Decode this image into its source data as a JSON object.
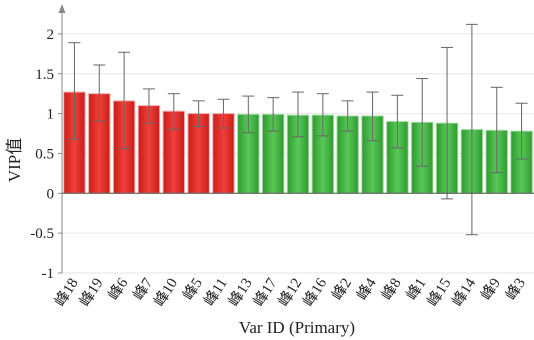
{
  "chart_data": {
    "type": "bar",
    "xlabel": "Var ID (Primary)",
    "ylabel": "VIP值",
    "ylim": [
      -1,
      2.3
    ],
    "yticks": [
      -1,
      -0.5,
      0,
      0.5,
      1,
      1.5,
      2
    ],
    "ytick_labels": [
      "-1",
      "-0.5",
      "0",
      "0.5",
      "1",
      "1.5",
      "2"
    ],
    "grid": true,
    "categories": [
      "峰18",
      "峰19",
      "峰6",
      "峰7",
      "峰10",
      "峰5",
      "峰11",
      "峰13",
      "峰17",
      "峰12",
      "峰16",
      "峰2",
      "峰4",
      "峰8",
      "峰1",
      "峰15",
      "峰14",
      "峰9",
      "峰3"
    ],
    "values": [
      1.27,
      1.25,
      1.16,
      1.1,
      1.03,
      1.0,
      1.0,
      0.99,
      0.99,
      0.98,
      0.98,
      0.97,
      0.97,
      0.9,
      0.89,
      0.88,
      0.8,
      0.79,
      0.78
    ],
    "error_low": [
      0.68,
      0.91,
      0.56,
      0.88,
      0.8,
      0.84,
      0.82,
      0.76,
      0.78,
      0.71,
      0.72,
      0.78,
      0.66,
      0.57,
      0.34,
      -0.07,
      -0.52,
      0.26,
      0.43
    ],
    "error_high": [
      1.89,
      1.61,
      1.77,
      1.31,
      1.25,
      1.16,
      1.18,
      1.22,
      1.2,
      1.27,
      1.25,
      1.16,
      1.27,
      1.23,
      1.44,
      1.83,
      2.12,
      1.33,
      1.13
    ],
    "bar_colors": [
      "#e52521",
      "#e52521",
      "#e52521",
      "#e52521",
      "#e52521",
      "#e52521",
      "#e52521",
      "#3cb13c",
      "#3cb13c",
      "#3cb13c",
      "#3cb13c",
      "#3cb13c",
      "#3cb13c",
      "#3cb13c",
      "#3cb13c",
      "#3cb13c",
      "#3cb13c",
      "#3cb13c",
      "#3cb13c"
    ]
  }
}
